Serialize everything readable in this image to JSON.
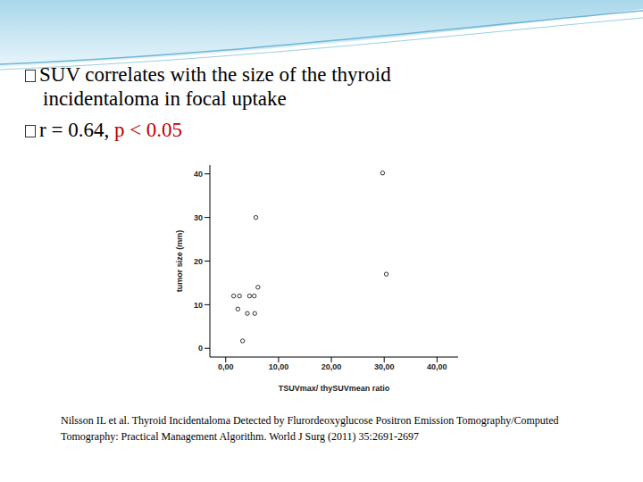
{
  "chart_data": {
    "type": "scatter",
    "title": "SUV correlates with the size of the thyroid incidentaloma in focal uptake",
    "annotations": [
      {
        "text": "r = 0.64, ",
        "color": "#000000"
      },
      {
        "text": "p < 0.05",
        "color": "#c00000"
      }
    ],
    "source": "Nilsson IL et al. Thyroid Incidentaloma Detected by Flurordeoxyglucose Positron Emission Tomography/Computed Tomography: Practical Management Algorithm. World J Surg (2011) 35:2691-2697",
    "x_label": "TSUVmax/ thySUVmean ratio",
    "y_label": "tumor size (mm)",
    "x": [
      1.5,
      2.6,
      2.3,
      4.1,
      4.5,
      5.4,
      5.5,
      5.7,
      6.1,
      3.2,
      29.7,
      30.4
    ],
    "values": [
      12,
      12,
      9,
      8,
      12,
      12,
      8,
      30,
      14,
      1.7,
      40.2,
      17
    ],
    "color": "#000000",
    "marker": "open circle",
    "xlim": [
      -3,
      44
    ],
    "ylim": [
      -2,
      42
    ],
    "xticks": [
      {
        "value": 0,
        "label": "0,00"
      },
      {
        "value": 10,
        "label": "10,00"
      },
      {
        "value": 20,
        "label": "20,00"
      },
      {
        "value": 30,
        "label": "30,00"
      },
      {
        "value": 40,
        "label": "40,00"
      }
    ],
    "yticks": [
      0,
      10,
      20,
      30,
      40
    ],
    "grid": false
  }
}
